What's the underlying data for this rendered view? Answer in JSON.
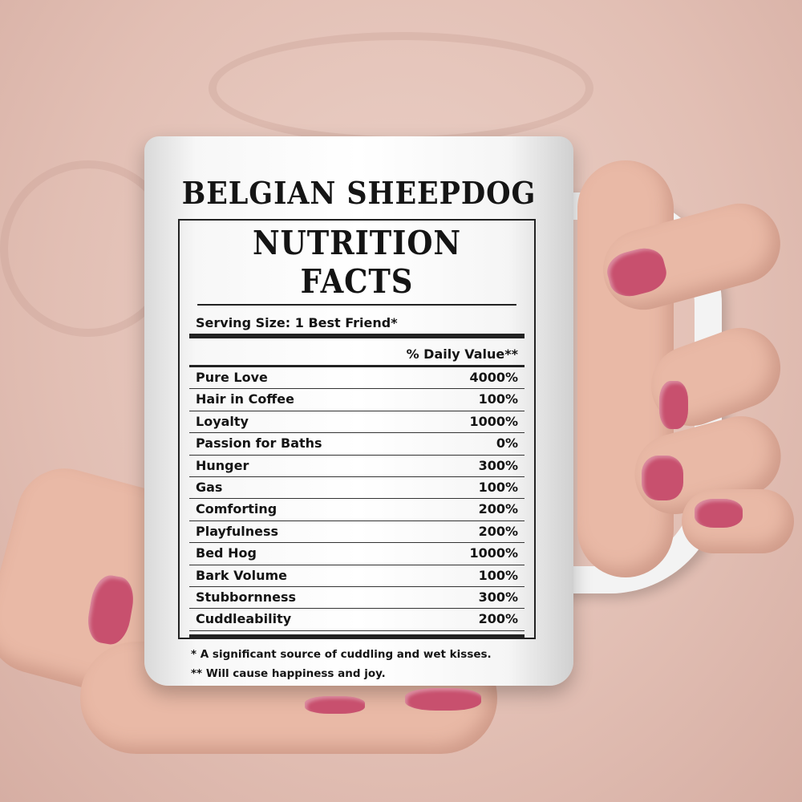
{
  "mug": {
    "breed": "BELGIAN SHEEPDOG",
    "heading": "NUTRITION FACTS",
    "serving_size": "Serving Size:  1 Best Friend*",
    "daily_value_header": "% Daily Value**",
    "rows": [
      {
        "label": "Pure Love",
        "value": "4000%"
      },
      {
        "label": "Hair in Coffee",
        "value": "100%"
      },
      {
        "label": "Loyalty",
        "value": "1000%"
      },
      {
        "label": "Passion for Baths",
        "value": "0%"
      },
      {
        "label": "Hunger",
        "value": "300%"
      },
      {
        "label": "Gas",
        "value": "100%"
      },
      {
        "label": "Comforting",
        "value": "200%"
      },
      {
        "label": "Playfulness",
        "value": "200%"
      },
      {
        "label": "Bed Hog",
        "value": "1000%"
      },
      {
        "label": "Bark Volume",
        "value": "100%"
      },
      {
        "label": "Stubbornness",
        "value": "300%"
      },
      {
        "label": "Cuddleability",
        "value": "200%"
      }
    ],
    "footnote_1": "* A significant source of cuddling and wet kisses.",
    "footnote_2": "** Will cause happiness and joy."
  },
  "colors": {
    "background": "#e2bfb4",
    "nail_polish": "#c8506e",
    "mug": "#ffffff"
  }
}
